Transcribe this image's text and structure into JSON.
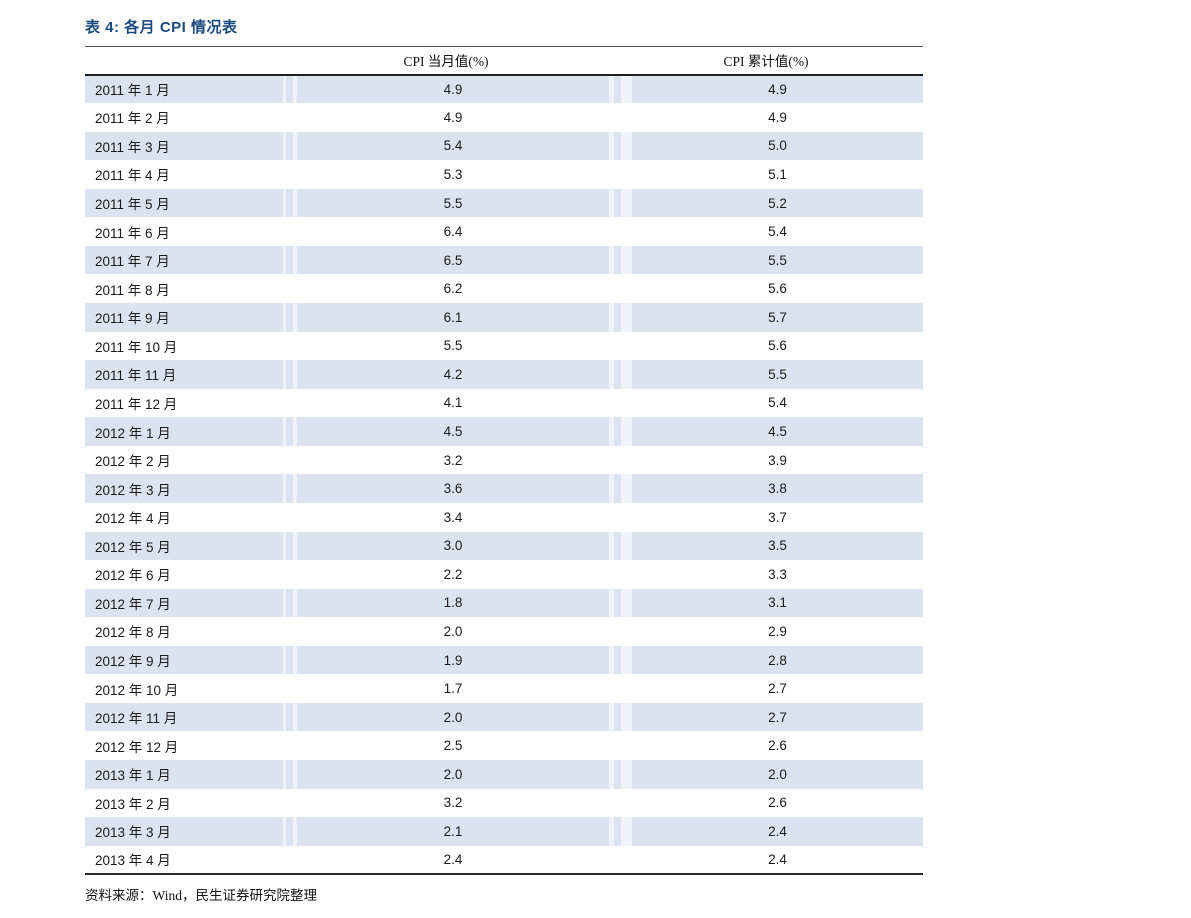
{
  "title": "表 4:  各月 CPI 情况表",
  "table": {
    "columns": [
      "CPI 当月值(%)",
      "CPI 累计值(%)"
    ],
    "rows": [
      {
        "month": "2011 年 1 月",
        "current": "4.9",
        "cumulative": "4.9"
      },
      {
        "month": "2011 年 2 月",
        "current": "4.9",
        "cumulative": "4.9"
      },
      {
        "month": "2011 年 3 月",
        "current": "5.4",
        "cumulative": "5.0"
      },
      {
        "month": "2011 年 4 月",
        "current": "5.3",
        "cumulative": "5.1"
      },
      {
        "month": "2011 年 5 月",
        "current": "5.5",
        "cumulative": "5.2"
      },
      {
        "month": "2011 年 6 月",
        "current": "6.4",
        "cumulative": "5.4"
      },
      {
        "month": "2011 年 7 月",
        "current": "6.5",
        "cumulative": "5.5"
      },
      {
        "month": "2011 年 8 月",
        "current": "6.2",
        "cumulative": "5.6"
      },
      {
        "month": "2011 年 9 月",
        "current": "6.1",
        "cumulative": "5.7"
      },
      {
        "month": "2011 年 10 月",
        "current": "5.5",
        "cumulative": "5.6"
      },
      {
        "month": "2011 年 11 月",
        "current": "4.2",
        "cumulative": "5.5"
      },
      {
        "month": "2011 年 12 月",
        "current": "4.1",
        "cumulative": "5.4"
      },
      {
        "month": "2012 年 1 月",
        "current": "4.5",
        "cumulative": "4.5"
      },
      {
        "month": "2012 年 2 月",
        "current": "3.2",
        "cumulative": "3.9"
      },
      {
        "month": "2012 年 3 月",
        "current": "3.6",
        "cumulative": "3.8"
      },
      {
        "month": "2012 年 4 月",
        "current": "3.4",
        "cumulative": "3.7"
      },
      {
        "month": "2012 年 5 月",
        "current": "3.0",
        "cumulative": "3.5"
      },
      {
        "month": "2012 年 6 月",
        "current": "2.2",
        "cumulative": "3.3"
      },
      {
        "month": "2012 年 7 月",
        "current": "1.8",
        "cumulative": "3.1"
      },
      {
        "month": "2012 年 8 月",
        "current": "2.0",
        "cumulative": "2.9"
      },
      {
        "month": "2012 年 9 月",
        "current": "1.9",
        "cumulative": "2.8"
      },
      {
        "month": "2012 年 10 月",
        "current": "1.7",
        "cumulative": "2.7"
      },
      {
        "month": "2012 年 11 月",
        "current": "2.0",
        "cumulative": "2.7"
      },
      {
        "month": "2012 年 12 月",
        "current": "2.5",
        "cumulative": "2.6"
      },
      {
        "month": "2013 年 1 月",
        "current": "2.0",
        "cumulative": "2.0"
      },
      {
        "month": "2013 年 2 月",
        "current": "3.2",
        "cumulative": "2.6"
      },
      {
        "month": "2013 年 3 月",
        "current": "2.1",
        "cumulative": "2.4"
      },
      {
        "month": "2013 年 4 月",
        "current": "2.4",
        "cumulative": "2.4"
      }
    ]
  },
  "source": "资料来源：Wind，民生证券研究院整理",
  "colors": {
    "stripe": "#dce3f0",
    "title_blue": "#1c4a7e",
    "header_rule": "#1f1f1f",
    "title_rule": "#4f4f4f",
    "bottom_rule": "#2b2b2b",
    "text": "#1a1a1a"
  }
}
